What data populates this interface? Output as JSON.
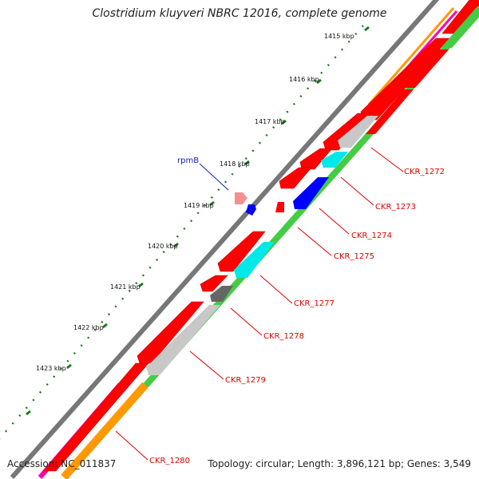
{
  "title": "Clostridium kluyveri NBRC 12016, complete genome",
  "footer": {
    "accession": "Accession: NC_011837",
    "summary": "Topology: circular; Length: 3,896,121 bp; Genes: 3,549"
  },
  "kbp_labels": [
    "1415 kbp",
    "1416 kbp",
    "1417 kbp",
    "1418 kbp",
    "1419 kbp",
    "1420 kbp",
    "1421 kbp",
    "1422 kbp",
    "1423 kbp"
  ],
  "gene_name": "rpmB",
  "loci": [
    "CKR_1272",
    "CKR_1273",
    "CKR_1274",
    "CKR_1275",
    "CKR_1277",
    "CKR_1278",
    "CKR_1279",
    "CKR_1280"
  ],
  "colors": {
    "cds": "#ff0000",
    "backbone": "#777777",
    "tick_green": "#1a7a1a",
    "locus_text": "#e00000",
    "gene_text": "#1020c0",
    "cyan": "#00e8e8",
    "grey": "#c8c8c8",
    "dark_grey": "#666666",
    "blue": "#0000ff",
    "green": "#44cc44",
    "orange": "#ff9900",
    "magenta": "#ff00aa",
    "pink": "#f39090"
  }
}
